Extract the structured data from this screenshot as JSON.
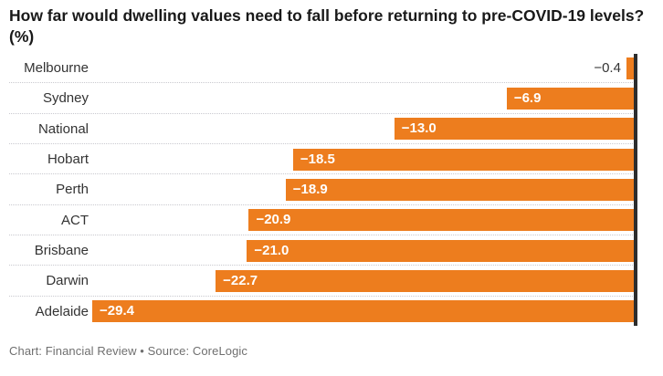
{
  "title": "How far would dwelling values need to fall before returning to pre-COVID-19 levels? (%)",
  "footer": "Chart: Financial Review • Source: CoreLogic",
  "colors": {
    "bar": "#ed7d1e",
    "baseline": "#2d2d2d",
    "title_text": "#191919",
    "category_text": "#333333",
    "value_inside_text": "#ffffff",
    "value_outside_text": "#333333",
    "separator": "#c9c9cf",
    "footer_text": "#6f6f6f",
    "background": "#ffffff"
  },
  "chart_data": {
    "type": "bar",
    "orientation": "horizontal",
    "title": "How far would dwelling values need to fall before returning to pre-COVID-19 levels? (%)",
    "xlabel": "",
    "ylabel": "",
    "categories": [
      "Melbourne",
      "Sydney",
      "National",
      "Hobart",
      "Perth",
      "ACT",
      "Brisbane",
      "Darwin",
      "Adelaide"
    ],
    "values": [
      -0.4,
      -6.9,
      -13.0,
      -18.5,
      -18.9,
      -20.9,
      -21.0,
      -22.7,
      -29.4
    ],
    "value_labels": [
      "−0.4",
      "−6.9",
      "−13.0",
      "−18.5",
      "−18.9",
      "−20.9",
      "−21.0",
      "−22.7",
      "−29.4"
    ],
    "xlim": [
      -30,
      0
    ],
    "baseline": 0,
    "baseline_position": "right",
    "grid": "dotted row separators",
    "legend": "none",
    "source": "CoreLogic",
    "credit": "Financial Review"
  }
}
